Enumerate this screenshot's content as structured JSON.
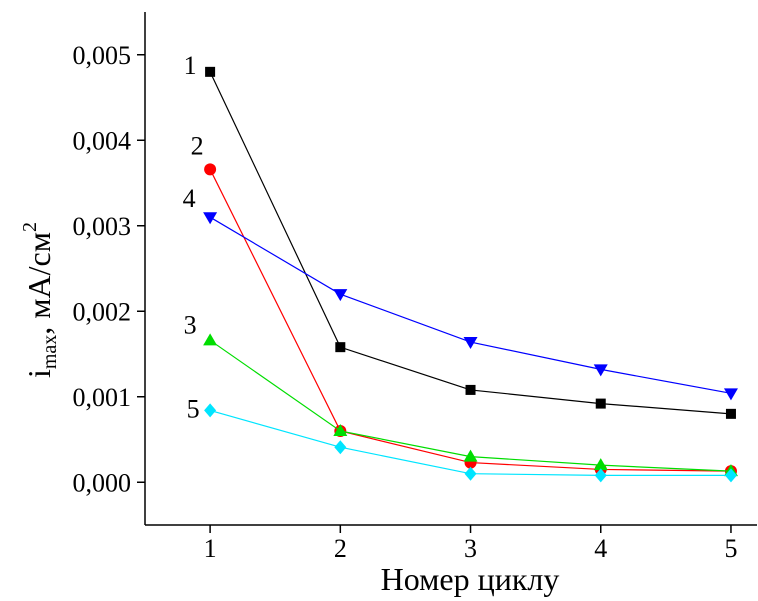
{
  "chart_data": {
    "type": "line",
    "x": [
      1,
      2,
      3,
      4,
      5
    ],
    "xlim": [
      0.5,
      5.2
    ],
    "xticks": [
      1,
      2,
      3,
      4,
      5
    ],
    "ylim": [
      -0.0005,
      0.0055
    ],
    "yticks": [
      {
        "value": 0,
        "label": "0,000"
      },
      {
        "value": 0.001,
        "label": "0,001"
      },
      {
        "value": 0.002,
        "label": "0,002"
      },
      {
        "value": 0.003,
        "label": "0,003"
      },
      {
        "value": 0.004,
        "label": "0,004"
      },
      {
        "value": 0.005,
        "label": "0,005"
      }
    ],
    "xlabel": "Номер циклу",
    "ylabel": {
      "main": "i",
      "sub": "max",
      "rest": ", мА/см",
      "sup": "2"
    },
    "series": [
      {
        "name": "1",
        "color": "#000000",
        "marker": "square",
        "values": [
          0.0048,
          0.00158,
          0.00108,
          0.00092,
          0.0008
        ]
      },
      {
        "name": "2",
        "color": "#ff0000",
        "marker": "circle",
        "values": [
          0.00366,
          0.0006,
          0.00023,
          0.00015,
          0.00013
        ]
      },
      {
        "name": "3",
        "color": "#00dd00",
        "marker": "triangle-up",
        "values": [
          0.00166,
          0.0006,
          0.0003,
          0.0002,
          0.00013
        ]
      },
      {
        "name": "4",
        "color": "#0000ff",
        "marker": "triangle-down",
        "values": [
          0.0031,
          0.0022,
          0.00164,
          0.00132,
          0.00104
        ]
      },
      {
        "name": "5",
        "color": "#00e5ff",
        "marker": "diamond",
        "values": [
          0.00084,
          0.00041,
          0.0001,
          8e-05,
          8e-05
        ]
      }
    ]
  }
}
